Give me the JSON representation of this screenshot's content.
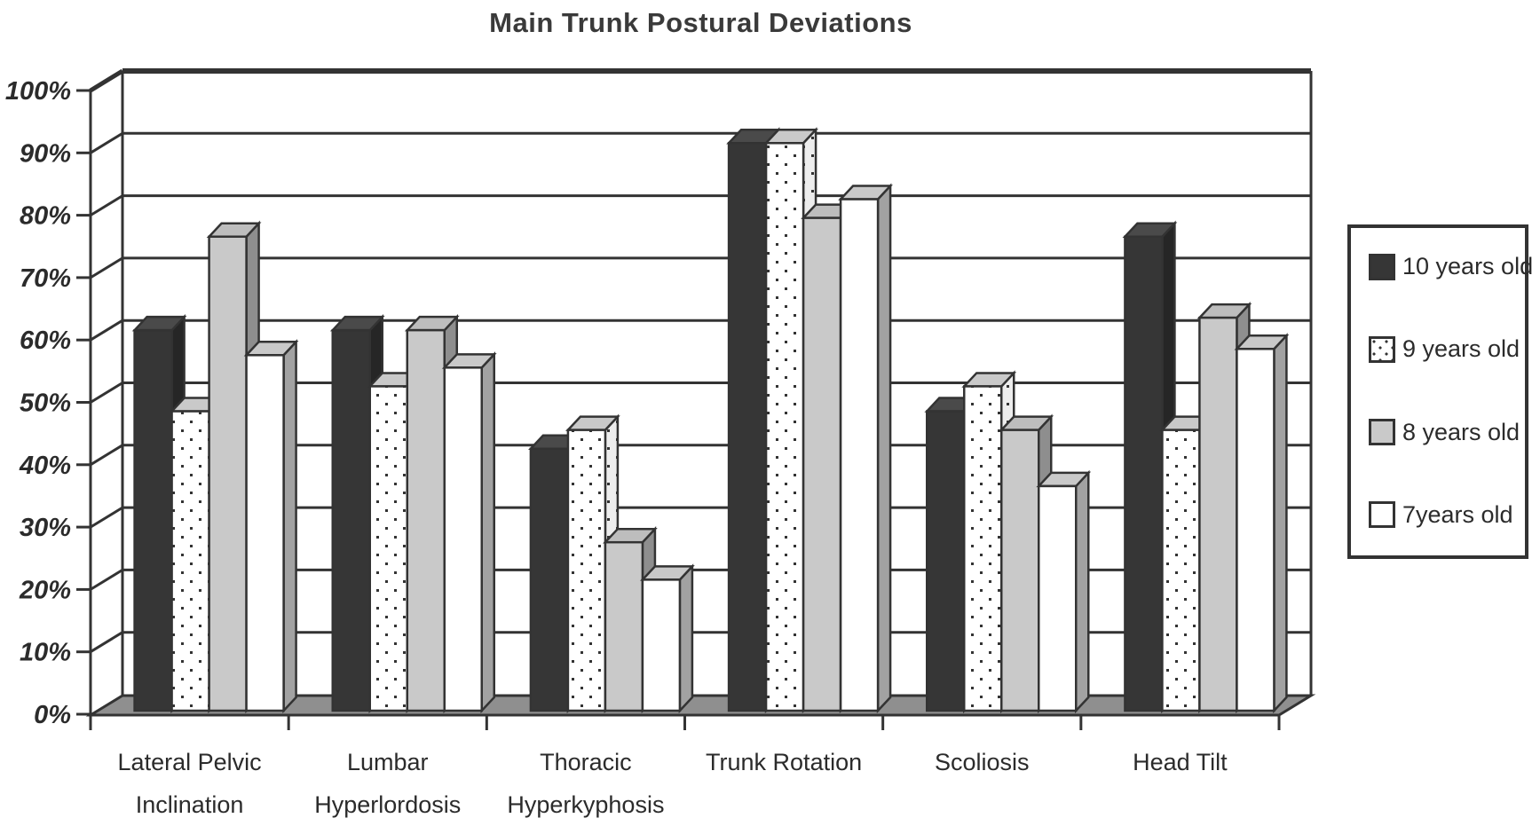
{
  "title": "Main Trunk Postural Deviations",
  "colors": {
    "axis": "#333333",
    "floor": "#8f8f8f",
    "background": "#ffffff",
    "title_text": "#3a3a3a",
    "label_text": "#2b2b2b"
  },
  "legend": {
    "items": [
      {
        "label": "10 years old",
        "swatch": "solid-dark"
      },
      {
        "label": "9 years old",
        "swatch": "dots"
      },
      {
        "label": "8 years old",
        "swatch": "solid-gray"
      },
      {
        "label": "7years old",
        "swatch": "solid-white"
      }
    ]
  },
  "chart_data": {
    "type": "bar",
    "style": "3d-extruded-columns",
    "title": "Main Trunk Postural Deviations",
    "categories": [
      "Lateral Pelvic Inclination",
      "Lumbar Hyperlordosis",
      "Thoracic Hyperkyphosis",
      "Trunk Rotation",
      "Scoliosis",
      "Head Tilt"
    ],
    "category_label_lines": [
      [
        "Lateral Pelvic",
        "Inclination"
      ],
      [
        "Lumbar",
        "Hyperlordosis"
      ],
      [
        "Thoracic",
        "Hyperkyphosis"
      ],
      [
        "Trunk Rotation"
      ],
      [
        "Scoliosis"
      ],
      [
        "Head Tilt"
      ]
    ],
    "series": [
      {
        "name": "10 years old",
        "values": [
          61,
          61,
          42,
          91,
          48,
          76
        ],
        "front": "#363636",
        "top": "#4a4a4a",
        "side": "#262626",
        "pattern": "solid"
      },
      {
        "name": "9 years old",
        "values": [
          48,
          52,
          45,
          91,
          52,
          45
        ],
        "front": "#ffffff",
        "top": "#c9c9c9",
        "side": "#ededed",
        "pattern": "dots"
      },
      {
        "name": "8 years old",
        "values": [
          76,
          61,
          27,
          79,
          45,
          63
        ],
        "front": "#c9c9c9",
        "top": "#bdbdbd",
        "side": "#8e8e8e",
        "pattern": "solid"
      },
      {
        "name": "7years old",
        "values": [
          57,
          55,
          21,
          82,
          36,
          58
        ],
        "front": "#ffffff",
        "top": "#c9c9c9",
        "side": "#a2a2a2",
        "pattern": "solid"
      }
    ],
    "y_axis": {
      "min": 0,
      "max": 100,
      "step": 10,
      "tick_labels": [
        "0%",
        "10%",
        "20%",
        "30%",
        "40%",
        "50%",
        "60%",
        "70%",
        "80%",
        "90%",
        "100%"
      ]
    },
    "grid": true,
    "legend_position": "right"
  }
}
